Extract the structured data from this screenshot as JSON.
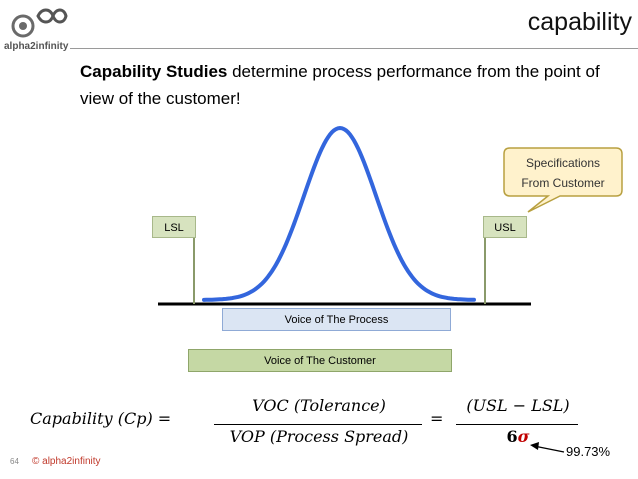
{
  "header": {
    "logo_text": "alpha2infinity",
    "title": "capability"
  },
  "intro": {
    "bold": "Capability Studies",
    "rest": " determine process performance from the point of view of the customer!"
  },
  "diagram": {
    "lsl_label": "LSL",
    "usl_label": "USL",
    "vop_label": "Voice of The Process",
    "voc_label": "Voice of The Customer",
    "callout_line1": "Specifications",
    "callout_line2": "From Customer",
    "colors": {
      "curve": "#3366dd",
      "spec_box": "#d7e3bf",
      "vop_box": "#dbe5f3",
      "voc_box": "#c5d8a4",
      "callout_fill": "#fff2cc",
      "callout_border": "#b8a040"
    }
  },
  "formula": {
    "lhs": "Capability (Cp) =",
    "eq": "=",
    "num1": "VOC (Tolerance)",
    "den1": "VOP (Process Spread)",
    "num2": "(USL − LSL)",
    "den2_coef": "6",
    "den2_sigma": "σ",
    "coverage": "99.73%"
  },
  "footer": {
    "page_number": "64",
    "copyright": "© alpha2infinity"
  }
}
